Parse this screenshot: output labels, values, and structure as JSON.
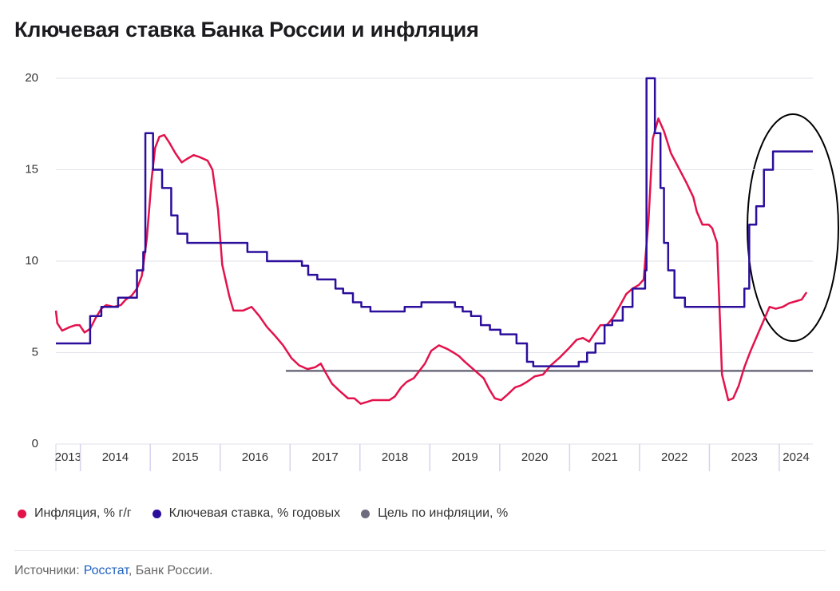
{
  "chart_data": {
    "type": "line",
    "title": "Ключевая ставка Банка России и инфляция",
    "xlim": [
      2013.65,
      2024.48
    ],
    "xticks": [
      2013,
      2014,
      2015,
      2016,
      2017,
      2018,
      2019,
      2020,
      2021,
      2022,
      2023,
      2024
    ],
    "ylim": [
      0,
      20
    ],
    "yticks": [
      0,
      5,
      10,
      15,
      20
    ],
    "grid": true,
    "legend": "bottom",
    "series": [
      {
        "name": "Инфляция, % г/г",
        "color": "#e3124b",
        "x": [
          2013.65,
          2013.67,
          2013.74,
          2013.85,
          2013.93,
          2013.99,
          2014.06,
          2014.14,
          2014.22,
          2014.3,
          2014.37,
          2014.48,
          2014.58,
          2014.65,
          2014.73,
          2014.81,
          2014.88,
          2014.95,
          2015.02,
          2015.07,
          2015.13,
          2015.2,
          2015.27,
          2015.36,
          2015.45,
          2015.53,
          2015.62,
          2015.7,
          2015.82,
          2015.89,
          2015.97,
          2016.03,
          2016.13,
          2016.19,
          2016.33,
          2016.45,
          2016.56,
          2016.67,
          2016.79,
          2016.9,
          2017.02,
          2017.13,
          2017.25,
          2017.36,
          2017.44,
          2017.51,
          2017.6,
          2017.71,
          2017.83,
          2017.92,
          2018.01,
          2018.1,
          2018.18,
          2018.33,
          2018.42,
          2018.5,
          2018.59,
          2018.67,
          2018.77,
          2018.85,
          2018.93,
          2019.02,
          2019.13,
          2019.25,
          2019.34,
          2019.42,
          2019.5,
          2019.59,
          2019.68,
          2019.77,
          2019.85,
          2019.93,
          2020.02,
          2020.11,
          2020.22,
          2020.3,
          2020.39,
          2020.5,
          2020.62,
          2020.73,
          2020.85,
          2020.98,
          2021.1,
          2021.19,
          2021.28,
          2021.35,
          2021.44,
          2021.53,
          2021.62,
          2021.71,
          2021.81,
          2021.9,
          2021.99,
          2022.06,
          2022.13,
          2022.19,
          2022.27,
          2022.35,
          2022.45,
          2022.56,
          2022.67,
          2022.77,
          2022.82,
          2022.9,
          2022.99,
          2023.04,
          2023.11,
          2023.18,
          2023.27,
          2023.34,
          2023.42,
          2023.5,
          2023.59,
          2023.68,
          2023.77,
          2023.86,
          2023.95,
          2024.05,
          2024.14,
          2024.23,
          2024.32,
          2024.39
        ],
        "values": [
          7.3,
          6.6,
          6.2,
          6.4,
          6.5,
          6.5,
          6.1,
          6.3,
          6.9,
          7.4,
          7.6,
          7.5,
          7.6,
          7.9,
          8.1,
          8.5,
          9.2,
          11.2,
          14.5,
          16.2,
          16.8,
          16.9,
          16.5,
          15.9,
          15.4,
          15.6,
          15.8,
          15.7,
          15.5,
          15.0,
          12.8,
          9.8,
          8.1,
          7.3,
          7.3,
          7.5,
          7.0,
          6.4,
          5.9,
          5.4,
          4.7,
          4.3,
          4.1,
          4.2,
          4.4,
          3.9,
          3.3,
          2.9,
          2.5,
          2.5,
          2.2,
          2.3,
          2.4,
          2.4,
          2.4,
          2.6,
          3.1,
          3.4,
          3.6,
          4.0,
          4.4,
          5.1,
          5.4,
          5.2,
          5.0,
          4.8,
          4.5,
          4.2,
          3.9,
          3.6,
          3.0,
          2.5,
          2.4,
          2.7,
          3.1,
          3.2,
          3.4,
          3.7,
          3.8,
          4.3,
          4.7,
          5.2,
          5.7,
          5.8,
          5.6,
          6.0,
          6.5,
          6.5,
          6.9,
          7.5,
          8.2,
          8.5,
          8.7,
          9.0,
          12.3,
          16.7,
          17.8,
          17.1,
          15.9,
          15.1,
          14.3,
          13.5,
          12.7,
          12.0,
          12.0,
          11.8,
          11.0,
          3.8,
          2.4,
          2.5,
          3.2,
          4.2,
          5.1,
          5.9,
          6.7,
          7.5,
          7.4,
          7.5,
          7.7,
          7.8,
          7.9,
          8.3
        ]
      },
      {
        "name": "Ключевая ставка, % годовых",
        "color": "#2c0e9c",
        "step": "post",
        "x": [
          2013.65,
          2014.14,
          2014.3,
          2014.54,
          2014.81,
          2014.9,
          2014.93,
          2015.04,
          2015.17,
          2015.3,
          2015.39,
          2015.53,
          2016.39,
          2016.67,
          2017.17,
          2017.26,
          2017.39,
          2017.65,
          2017.76,
          2017.9,
          2018.02,
          2018.15,
          2018.64,
          2018.88,
          2019.36,
          2019.47,
          2019.59,
          2019.73,
          2019.86,
          2020.01,
          2020.24,
          2020.39,
          2020.48,
          2021.13,
          2021.25,
          2021.37,
          2021.5,
          2021.61,
          2021.76,
          2021.9,
          2022.08,
          2022.1,
          2022.22,
          2022.3,
          2022.35,
          2022.41,
          2022.5,
          2022.65,
          2023.5,
          2023.57,
          2023.67,
          2023.78,
          2023.91
        ],
        "values": [
          5.5,
          7.0,
          7.5,
          8.0,
          9.5,
          10.5,
          17,
          15,
          14,
          12.5,
          11.5,
          11,
          10.5,
          10,
          9.75,
          9.25,
          9.0,
          8.5,
          8.25,
          7.75,
          7.5,
          7.25,
          7.5,
          7.75,
          7.5,
          7.25,
          7.0,
          6.5,
          6.25,
          6.0,
          5.5,
          4.5,
          4.25,
          4.5,
          5.0,
          5.5,
          6.5,
          6.75,
          7.5,
          8.5,
          9.5,
          20,
          17,
          14,
          11,
          9.5,
          8.0,
          7.5,
          8.5,
          12,
          13,
          15,
          16
        ]
      },
      {
        "name": "Цель по инфляции, %",
        "color": "#6c6c7e",
        "x": [
          2016.94,
          2024.48
        ],
        "values": [
          4,
          4
        ]
      }
    ]
  },
  "source": {
    "prefix": "Источники:",
    "link": "Росстат",
    "suffix": ", Банк России."
  }
}
